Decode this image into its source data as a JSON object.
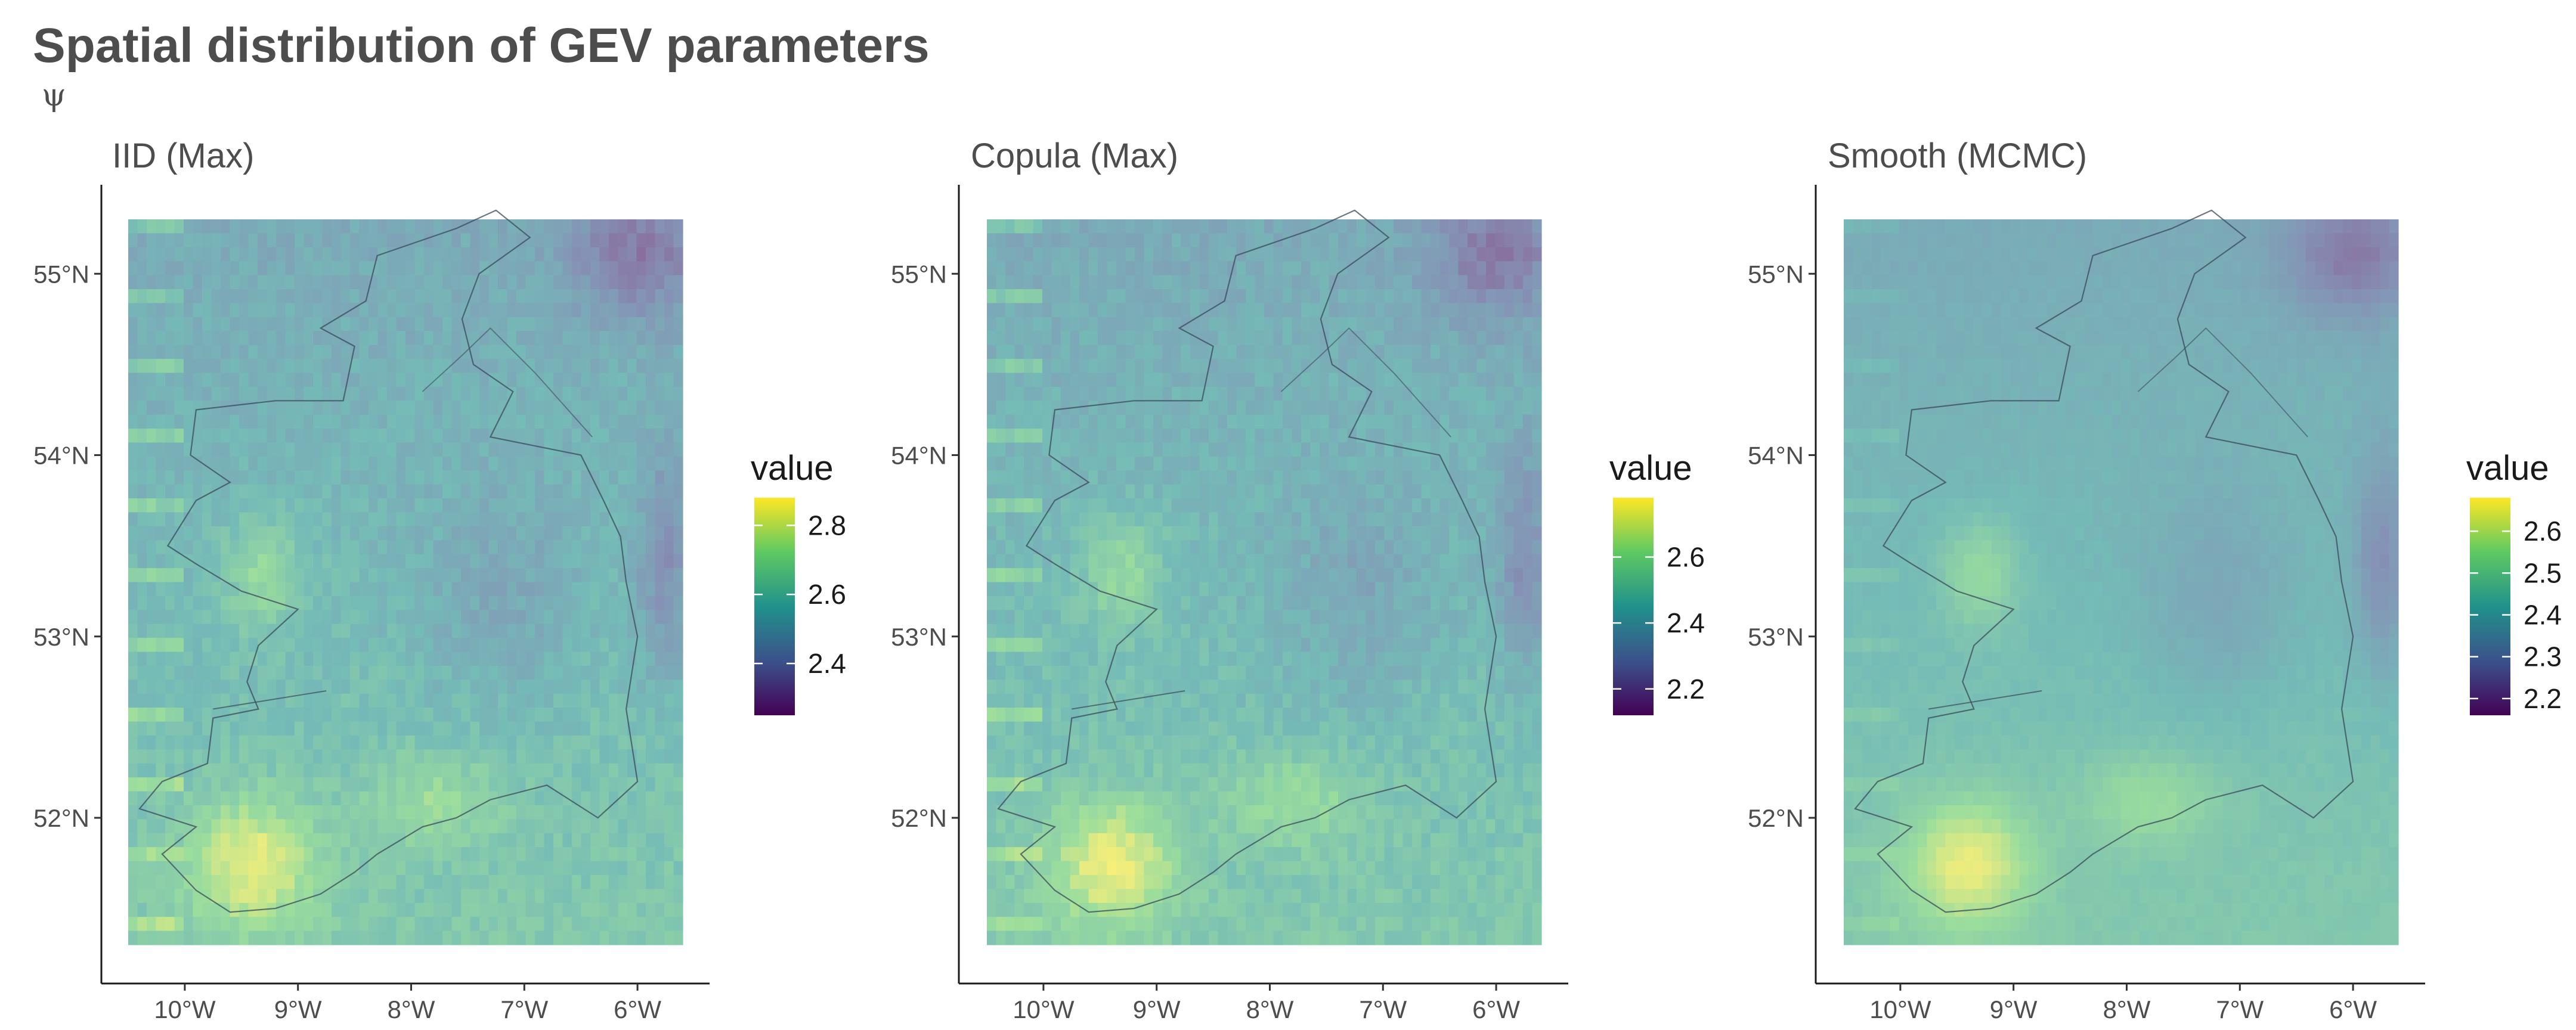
{
  "title": "Spatial distribution of GEV parameters",
  "subtitle": "ψ",
  "chart_data": [
    {
      "type": "heatmap",
      "title": "IID (Max)",
      "x_ticks": [
        "10°W",
        "9°W",
        "8°W",
        "7°W",
        "6°W"
      ],
      "x_tick_values": [
        -10,
        -9,
        -8,
        -7,
        -6
      ],
      "y_ticks": [
        "55°N",
        "54°N",
        "53°N",
        "52°N"
      ],
      "y_tick_values": [
        55,
        54,
        53,
        52
      ],
      "xlim": [
        -10.5,
        -5.6
      ],
      "ylim": [
        51.3,
        55.3
      ],
      "legend": {
        "title": "value",
        "min": 2.25,
        "max": 2.88,
        "ticks": [
          2.4,
          2.6,
          2.8
        ],
        "tick_labels": [
          "2.4",
          "2.6",
          "2.8"
        ]
      },
      "noise": 1.0
    },
    {
      "type": "heatmap",
      "title": "Copula (Max)",
      "x_ticks": [
        "10°W",
        "9°W",
        "8°W",
        "7°W",
        "6°W"
      ],
      "x_tick_values": [
        -10,
        -9,
        -8,
        -7,
        -6
      ],
      "y_ticks": [
        "55°N",
        "54°N",
        "53°N",
        "52°N"
      ],
      "y_tick_values": [
        55,
        54,
        53,
        52
      ],
      "xlim": [
        -10.5,
        -5.6
      ],
      "ylim": [
        51.3,
        55.3
      ],
      "legend": {
        "title": "value",
        "min": 2.12,
        "max": 2.78,
        "ticks": [
          2.2,
          2.4,
          2.6
        ],
        "tick_labels": [
          "2.2",
          "2.4",
          "2.6"
        ]
      },
      "noise": 1.0
    },
    {
      "type": "heatmap",
      "title": "Smooth (MCMC)",
      "x_ticks": [
        "10°W",
        "9°W",
        "8°W",
        "7°W",
        "6°W"
      ],
      "x_tick_values": [
        -10,
        -9,
        -8,
        -7,
        -6
      ],
      "y_ticks": [
        "55°N",
        "54°N",
        "53°N",
        "52°N"
      ],
      "y_tick_values": [
        55,
        54,
        53,
        52
      ],
      "xlim": [
        -10.5,
        -5.6
      ],
      "ylim": [
        51.3,
        55.3
      ],
      "legend": {
        "title": "value",
        "min": 2.16,
        "max": 2.68,
        "ticks": [
          2.2,
          2.3,
          2.4,
          2.5,
          2.6
        ],
        "tick_labels": [
          "2.2",
          "2.3",
          "2.4",
          "2.5",
          "2.6"
        ]
      },
      "noise": 0.35
    }
  ],
  "colors": {
    "viridis": [
      "#440154",
      "#3b528b",
      "#21918c",
      "#5ec962",
      "#fde725"
    ],
    "coast": "#3a4a5a",
    "text": "#4d4d4d"
  }
}
